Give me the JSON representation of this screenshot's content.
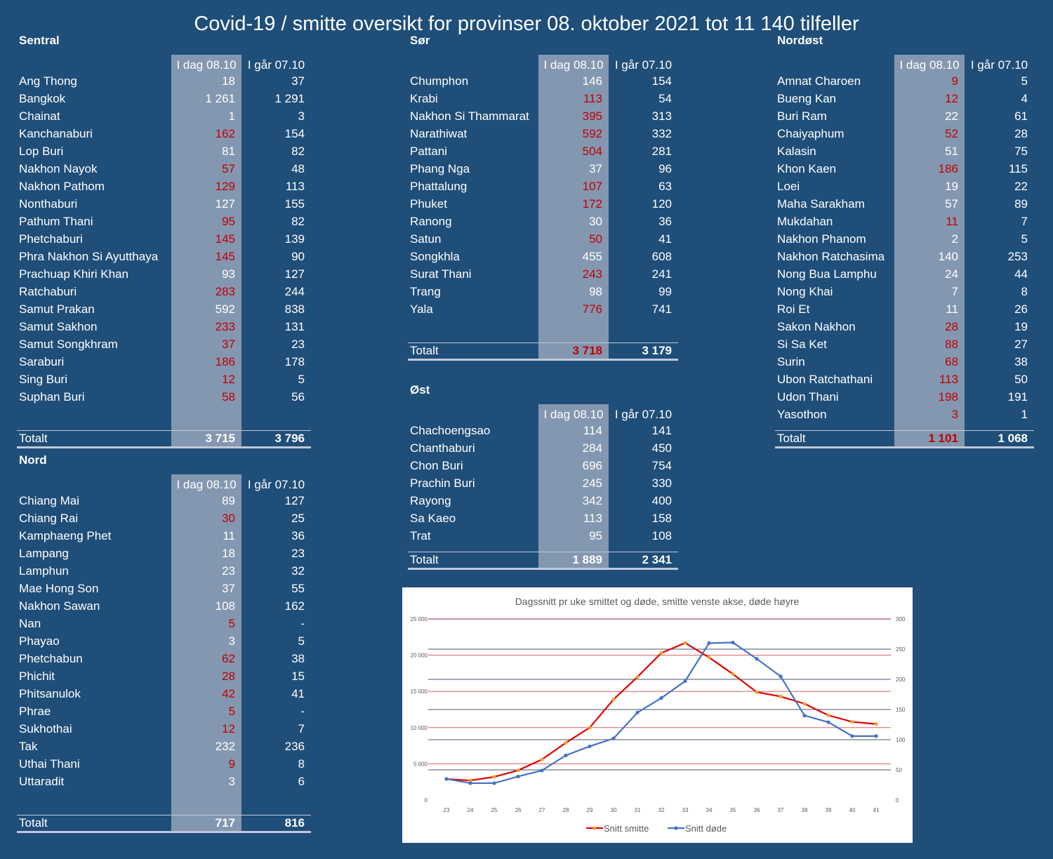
{
  "title": "Covid-19 / smitte oversikt for provinser 08. oktober 2021 tot 11 140 tilfeller",
  "col_today": "I dag 08.10",
  "col_yesterday": "I går 07.10",
  "total_label": "Totalt",
  "sentral": {
    "name": "Sentral",
    "rows": [
      {
        "name": "Ang Thong",
        "today": "18",
        "yday": "37"
      },
      {
        "name": "Bangkok",
        "today": "1 261",
        "yday": "1 291"
      },
      {
        "name": "Chainat",
        "today": "1",
        "yday": "3"
      },
      {
        "name": "Kanchanaburi",
        "today": "162",
        "yday": "154"
      },
      {
        "name": "Lop Buri",
        "today": "81",
        "yday": "82"
      },
      {
        "name": "Nakhon Nayok",
        "today": "57",
        "yday": "48"
      },
      {
        "name": "Nakhon Pathom",
        "today": "129",
        "yday": "113"
      },
      {
        "name": "Nonthaburi",
        "today": "127",
        "yday": "155"
      },
      {
        "name": "Pathum Thani",
        "today": "95",
        "yday": "82"
      },
      {
        "name": "Phetchaburi",
        "today": "145",
        "yday": "139"
      },
      {
        "name": "Phra Nakhon Si Ayutthaya",
        "today": "145",
        "yday": "90"
      },
      {
        "name": "Prachuap Khiri Khan",
        "today": "93",
        "yday": "127"
      },
      {
        "name": "Ratchaburi",
        "today": "283",
        "yday": "244"
      },
      {
        "name": "Samut Prakan",
        "today": "592",
        "yday": "838"
      },
      {
        "name": "Samut Sakhon",
        "today": "233",
        "yday": "131"
      },
      {
        "name": "Samut Songkhram",
        "today": "37",
        "yday": "23"
      },
      {
        "name": "Saraburi",
        "today": "186",
        "yday": "178"
      },
      {
        "name": "Sing Buri",
        "today": "12",
        "yday": "5"
      },
      {
        "name": "Suphan Buri",
        "today": "58",
        "yday": "56"
      }
    ],
    "total_today": "3 715",
    "total_yday": "3 796"
  },
  "nord": {
    "name": "Nord",
    "rows": [
      {
        "name": "Chiang Mai",
        "today": "89",
        "yday": "127"
      },
      {
        "name": "Chiang Rai",
        "today": "30",
        "yday": "25"
      },
      {
        "name": "Kamphaeng Phet",
        "today": "11",
        "yday": "36"
      },
      {
        "name": "Lampang",
        "today": "18",
        "yday": "23"
      },
      {
        "name": "Lamphun",
        "today": "23",
        "yday": "32"
      },
      {
        "name": "Mae Hong Son",
        "today": "37",
        "yday": "55"
      },
      {
        "name": "Nakhon Sawan",
        "today": "108",
        "yday": "162"
      },
      {
        "name": "Nan",
        "today": "5",
        "yday": "-"
      },
      {
        "name": "Phayao",
        "today": "3",
        "yday": "5"
      },
      {
        "name": "Phetchabun",
        "today": "62",
        "yday": "38"
      },
      {
        "name": "Phichit",
        "today": "28",
        "yday": "15"
      },
      {
        "name": "Phitsanulok",
        "today": "42",
        "yday": "41"
      },
      {
        "name": "Phrae",
        "today": "5",
        "yday": "-"
      },
      {
        "name": "Sukhothai",
        "today": "12",
        "yday": "7"
      },
      {
        "name": "Tak",
        "today": "232",
        "yday": "236"
      },
      {
        "name": "Uthai Thani",
        "today": "9",
        "yday": "8"
      },
      {
        "name": "Uttaradit",
        "today": "3",
        "yday": "6"
      }
    ],
    "total_today": "717",
    "total_yday": "816"
  },
  "sor": {
    "name": "Sør",
    "rows": [
      {
        "name": "Chumphon",
        "today": "146",
        "yday": "154"
      },
      {
        "name": "Krabi",
        "today": "113",
        "yday": "54"
      },
      {
        "name": "Nakhon Si Thammarat",
        "today": "395",
        "yday": "313"
      },
      {
        "name": "Narathiwat",
        "today": "592",
        "yday": "332"
      },
      {
        "name": "Pattani",
        "today": "504",
        "yday": "281"
      },
      {
        "name": "Phang Nga",
        "today": "37",
        "yday": "96"
      },
      {
        "name": "Phattalung",
        "today": "107",
        "yday": "63"
      },
      {
        "name": "Phuket",
        "today": "172",
        "yday": "120"
      },
      {
        "name": "Ranong",
        "today": "30",
        "yday": "36"
      },
      {
        "name": "Satun",
        "today": "50",
        "yday": "41"
      },
      {
        "name": "Songkhla",
        "today": "455",
        "yday": "608"
      },
      {
        "name": "Surat Thani",
        "today": "243",
        "yday": "241"
      },
      {
        "name": "Trang",
        "today": "98",
        "yday": "99"
      },
      {
        "name": "Yala",
        "today": "776",
        "yday": "741"
      }
    ],
    "total_today": "3 718",
    "total_yday": "3 179"
  },
  "ost": {
    "name": "Øst",
    "rows": [
      {
        "name": "Chachoengsao",
        "today": "114",
        "yday": "141"
      },
      {
        "name": "Chanthaburi",
        "today": "284",
        "yday": "450"
      },
      {
        "name": "Chon Buri",
        "today": "696",
        "yday": "754"
      },
      {
        "name": "Prachin Buri",
        "today": "245",
        "yday": "330"
      },
      {
        "name": "Rayong",
        "today": "342",
        "yday": "400"
      },
      {
        "name": "Sa Kaeo",
        "today": "113",
        "yday": "158"
      },
      {
        "name": "Trat",
        "today": "95",
        "yday": "108"
      }
    ],
    "total_today": "1 889",
    "total_yday": "2 341"
  },
  "nordost": {
    "name": "Nordøst",
    "rows": [
      {
        "name": "Amnat Charoen",
        "today": "9",
        "yday": "5"
      },
      {
        "name": "Bueng Kan",
        "today": "12",
        "yday": "4"
      },
      {
        "name": "Buri Ram",
        "today": "22",
        "yday": "61"
      },
      {
        "name": "Chaiyaphum",
        "today": "52",
        "yday": "28"
      },
      {
        "name": "Kalasin",
        "today": "51",
        "yday": "75"
      },
      {
        "name": "Khon Kaen",
        "today": "186",
        "yday": "115"
      },
      {
        "name": "Loei",
        "today": "19",
        "yday": "22"
      },
      {
        "name": "Maha Sarakham",
        "today": "57",
        "yday": "89"
      },
      {
        "name": "Mukdahan",
        "today": "11",
        "yday": "7"
      },
      {
        "name": "Nakhon Phanom",
        "today": "2",
        "yday": "5"
      },
      {
        "name": "Nakhon Ratchasima",
        "today": "140",
        "yday": "253"
      },
      {
        "name": "Nong Bua Lamphu",
        "today": "24",
        "yday": "44"
      },
      {
        "name": "Nong Khai",
        "today": "7",
        "yday": "8"
      },
      {
        "name": "Roi Et",
        "today": "11",
        "yday": "26"
      },
      {
        "name": "Sakon Nakhon",
        "today": "28",
        "yday": "19"
      },
      {
        "name": "Si Sa Ket",
        "today": "88",
        "yday": "27"
      },
      {
        "name": "Surin",
        "today": "68",
        "yday": "38"
      },
      {
        "name": "Ubon Ratchathani",
        "today": "113",
        "yday": "50"
      },
      {
        "name": "Udon Thani",
        "today": "198",
        "yday": "191"
      },
      {
        "name": "Yasothon",
        "today": "3",
        "yday": "1"
      }
    ],
    "total_today": "1 101",
    "total_yday": "1 068"
  },
  "colors": {
    "increase": "#c00000",
    "background": "#1f4e79",
    "today_column": "#8497b0"
  },
  "chart_data": {
    "type": "line",
    "title": "Dagssnitt pr uke smittet og døde, smitte venste akse, døde høyre",
    "x": [
      23,
      24,
      25,
      26,
      27,
      28,
      29,
      30,
      31,
      32,
      33,
      34,
      35,
      36,
      37,
      38,
      39,
      40,
      41
    ],
    "x_ticks": [
      "23",
      "24",
      "25",
      "26",
      "27",
      "28",
      "29",
      "30",
      "31",
      "32",
      "33",
      "34",
      "35",
      "36",
      "37",
      "38",
      "39",
      "40",
      "41"
    ],
    "y_left": {
      "range": [
        0,
        25000
      ],
      "ticks": [
        "0",
        "5 000",
        "10 000",
        "15 000",
        "20 000",
        "25 000"
      ]
    },
    "y_right": {
      "range": [
        0,
        300
      ],
      "ticks": [
        "0",
        "50",
        "100",
        "150",
        "200",
        "250",
        "300"
      ]
    },
    "grid": true,
    "legend_position": "bottom",
    "series": [
      {
        "name": "Snitt smitte",
        "axis": "left",
        "color": "#e00000",
        "marker_color": "#f0a030",
        "values": [
          2900,
          2700,
          3200,
          4100,
          5600,
          7900,
          10000,
          13900,
          17000,
          20300,
          21700,
          19700,
          17400,
          14900,
          14300,
          13300,
          11700,
          10800,
          10500
        ]
      },
      {
        "name": "Snitt døde",
        "axis": "right",
        "color": "#4472c4",
        "marker_color": "#4472c4",
        "values": [
          35,
          28,
          28,
          39,
          49,
          74,
          89,
          102,
          145,
          169,
          197,
          260,
          261,
          234,
          205,
          140,
          129,
          106,
          106
        ]
      }
    ]
  }
}
